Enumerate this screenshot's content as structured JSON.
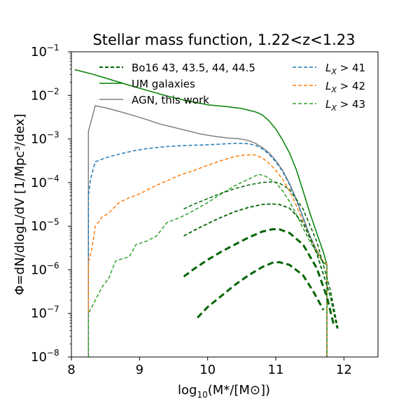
{
  "chart_data": {
    "type": "line",
    "title": "Stellar mass function, 1.22<z<1.23",
    "xlabel_pre": "log",
    "xlabel_sub": "10",
    "xlabel_post": "(M*/[M⊙])",
    "ylabel": "Φ=dN/dlogL/dV [1/Mpc³/dex]",
    "xlim": [
      8.0,
      12.5
    ],
    "ylim": [
      1e-08,
      0.1
    ],
    "yscale": "log",
    "x_ticks": [
      "8",
      "9",
      "10",
      "11",
      "12"
    ],
    "y_ticks": [
      {
        "base": "10",
        "exp": "−8"
      },
      {
        "base": "10",
        "exp": "−7"
      },
      {
        "base": "10",
        "exp": "−6"
      },
      {
        "base": "10",
        "exp": "−5"
      },
      {
        "base": "10",
        "exp": "−4"
      },
      {
        "base": "10",
        "exp": "−3"
      },
      {
        "base": "10",
        "exp": "−2"
      },
      {
        "base": "10",
        "exp": "−1"
      }
    ],
    "legend_left": [
      {
        "label": "Bo16 43, 43.5, 44, 44.5",
        "series": "bo16-lx43"
      },
      {
        "label": "UM galaxies",
        "series": "um-galaxies"
      },
      {
        "label": "AGN, this work",
        "series": "agn-this-work"
      }
    ],
    "legend_right": [
      {
        "label_main": "L",
        "label_sub": "X",
        "label_rest": " > 41",
        "series": "lx-gt-41"
      },
      {
        "label_main": "L",
        "label_sub": "X",
        "label_rest": " > 42",
        "series": "lx-gt-42"
      },
      {
        "label_main": "L",
        "label_sub": "X",
        "label_rest": " > 43",
        "series": "lx-gt-43"
      }
    ],
    "series": [
      {
        "id": "um-galaxies",
        "color": "#008000",
        "dash": "solid",
        "width": 1.5,
        "x": [
          8.05,
          8.3,
          8.5,
          8.8,
          9.1,
          9.4,
          9.7,
          10.0,
          10.3,
          10.5,
          10.7,
          10.8,
          10.9,
          11.0,
          11.1,
          11.2,
          11.3,
          11.4,
          11.5,
          11.6,
          11.7,
          11.75
        ],
        "y": [
          0.039,
          0.031,
          0.025,
          0.018,
          0.0132,
          0.0097,
          0.0075,
          0.0061,
          0.0055,
          0.005,
          0.0042,
          0.0036,
          0.0026,
          0.0017,
          0.00095,
          0.00048,
          0.0002,
          6.5e-05,
          2e-05,
          7e-06,
          2.5e-06,
          1.3e-06
        ]
      },
      {
        "id": "agn-this-work",
        "color": "#808080",
        "dash": "solid",
        "width": 1.5,
        "x": [
          8.25,
          8.25,
          8.35,
          8.5,
          8.7,
          8.9,
          9.1,
          9.3,
          9.5,
          9.7,
          9.9,
          10.1,
          10.3,
          10.45,
          10.6,
          10.7,
          10.8,
          10.9,
          11.0,
          11.1,
          11.2,
          11.3,
          11.4,
          11.5,
          11.6,
          11.7,
          11.75,
          11.75
        ],
        "y": [
          1e-08,
          0.0015,
          0.0058,
          0.0052,
          0.0043,
          0.0035,
          0.0028,
          0.0022,
          0.00185,
          0.00155,
          0.0013,
          0.00115,
          0.00105,
          0.00102,
          0.00092,
          0.0008,
          0.00064,
          0.00048,
          0.00032,
          0.00019,
          9.5e-05,
          4.2e-05,
          1.6e-05,
          6e-06,
          2.8e-06,
          1.5e-06,
          1.35e-06,
          1e-08
        ]
      },
      {
        "id": "lx-gt-41",
        "color": "#1f77b4",
        "dash": "5,3",
        "width": 1.5,
        "x": [
          8.25,
          8.25,
          8.28,
          8.35,
          8.5,
          8.7,
          8.9,
          9.1,
          9.3,
          9.5,
          9.7,
          9.9,
          10.1,
          10.3,
          10.45,
          10.6,
          10.7,
          10.8,
          10.9,
          11.0,
          11.1,
          11.2,
          11.3,
          11.4,
          11.5,
          11.6,
          11.7,
          11.75,
          11.75
        ],
        "y": [
          1e-08,
          5e-05,
          0.00012,
          0.0003,
          0.00037,
          0.00045,
          0.00053,
          0.0006,
          0.00065,
          0.00069,
          0.00071,
          0.00073,
          0.00075,
          0.00078,
          0.0008,
          0.00078,
          0.00072,
          0.0006,
          0.00045,
          0.0003,
          0.00018,
          9e-05,
          4e-05,
          1.6e-05,
          6e-06,
          2.8e-06,
          1.5e-06,
          1.35e-06,
          1e-08
        ]
      },
      {
        "id": "lx-gt-42",
        "color": "#ff7f0e",
        "dash": "5,3",
        "width": 1.5,
        "x": [
          8.25,
          8.25,
          8.3,
          8.35,
          8.45,
          8.55,
          8.7,
          8.85,
          9.0,
          9.2,
          9.4,
          9.6,
          9.8,
          10.0,
          10.2,
          10.4,
          10.55,
          10.7,
          10.8,
          10.9,
          11.0,
          11.1,
          11.2,
          11.3,
          11.4,
          11.5,
          11.6,
          11.7,
          11.75,
          11.75
        ],
        "y": [
          1e-08,
          1.5e-06,
          3e-06,
          1e-05,
          1.6e-05,
          2e-05,
          3.5e-05,
          4.5e-05,
          5.5e-05,
          8e-05,
          0.00011,
          0.00015,
          0.00019,
          0.00025,
          0.00032,
          0.0004,
          0.00043,
          0.00043,
          0.00037,
          0.00028,
          0.00019,
          0.00012,
          6.5e-05,
          3e-05,
          1.3e-05,
          5.5e-06,
          2.7e-06,
          1.5e-06,
          1.35e-06,
          1e-08
        ]
      },
      {
        "id": "lx-gt-43",
        "color": "#2ca02c",
        "dash": "5,3",
        "width": 1.5,
        "x": [
          8.25,
          8.25,
          8.3,
          8.45,
          8.55,
          8.65,
          8.85,
          8.95,
          9.1,
          9.25,
          9.4,
          9.6,
          9.8,
          10.0,
          10.2,
          10.4,
          10.6,
          10.75,
          10.85,
          11.0,
          11.1,
          11.2,
          11.3,
          11.4,
          11.5,
          11.6,
          11.7,
          11.75,
          11.75
        ],
        "y": [
          1e-08,
          1e-07,
          1.4e-07,
          4e-07,
          6.5e-07,
          1.6e-06,
          2e-06,
          3.8e-06,
          4.5e-06,
          6e-06,
          1.2e-05,
          1.6e-05,
          2.3e-05,
          3.5e-05,
          5.5e-05,
          8.5e-05,
          0.00012,
          0.000155,
          0.00014,
          0.0001,
          6.5e-05,
          3.7e-05,
          1.9e-05,
          9e-06,
          4.5e-06,
          2.5e-06,
          1.4e-06,
          1.3e-06,
          1e-08
        ]
      },
      {
        "id": "bo16-lx43",
        "color": "#006400",
        "dash": "5,3",
        "width": 1.5,
        "x": [
          9.65,
          9.8,
          10.0,
          10.2,
          10.4,
          10.6,
          10.8,
          10.95,
          11.05,
          11.2,
          11.4,
          11.6,
          11.8,
          11.92
        ],
        "y": [
          2.5e-05,
          3.2e-05,
          4.3e-05,
          5.7e-05,
          7.3e-05,
          8.8e-05,
          0.000101,
          0.000104,
          9.8e-05,
          7e-05,
          2.5e-05,
          4.5e-06,
          3.5e-07,
          4e-08
        ]
      },
      {
        "id": "bo16-lx43.5",
        "color": "#006400",
        "dash": "5,3",
        "width": 1.8,
        "x": [
          9.65,
          9.8,
          10.0,
          10.2,
          10.4,
          10.6,
          10.8,
          10.95,
          11.05,
          11.2,
          11.4,
          11.6,
          11.8,
          11.9
        ],
        "y": [
          6e-06,
          8e-06,
          1.15e-05,
          1.6e-05,
          2.15e-05,
          2.7e-05,
          3.15e-05,
          3.25e-05,
          3.15e-05,
          2.6e-05,
          1.2e-05,
          2.4e-06,
          2.5e-07,
          4.5e-08
        ]
      },
      {
        "id": "bo16-lx44",
        "color": "#006400",
        "dash": "9,5",
        "width": 3.0,
        "x": [
          9.65,
          9.8,
          10.0,
          10.2,
          10.4,
          10.6,
          10.8,
          10.95,
          11.05,
          11.2,
          11.4,
          11.6,
          11.75,
          11.85
        ],
        "y": [
          7e-07,
          1.05e-06,
          1.7e-06,
          2.6e-06,
          3.8e-06,
          5.5e-06,
          7.5e-06,
          8.5e-06,
          8.5e-06,
          7e-06,
          3.8e-06,
          1.1e-06,
          2.4e-07,
          5.5e-08
        ]
      },
      {
        "id": "bo16-lx44.5",
        "color": "#006400",
        "dash": "9,5",
        "width": 3.0,
        "x": [
          9.85,
          10.0,
          10.2,
          10.4,
          10.6,
          10.8,
          10.95,
          11.05,
          11.2,
          11.4,
          11.55,
          11.7
        ],
        "y": [
          8e-08,
          1.4e-07,
          2.5e-07,
          4.5e-07,
          7.5e-07,
          1.15e-06,
          1.45e-06,
          1.5e-06,
          1.3e-06,
          7.5e-07,
          3.2e-07,
          1.2e-07
        ]
      }
    ]
  }
}
